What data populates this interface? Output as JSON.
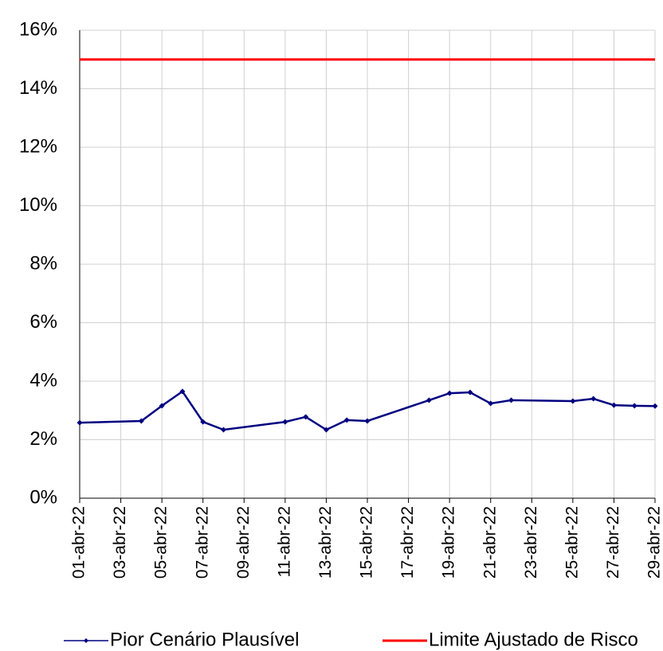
{
  "chart_data": {
    "type": "line",
    "x": [
      "2022-04-01",
      "2022-04-04",
      "2022-04-05",
      "2022-04-06",
      "2022-04-07",
      "2022-04-08",
      "2022-04-11",
      "2022-04-12",
      "2022-04-13",
      "2022-04-14",
      "2022-04-15",
      "2022-04-18",
      "2022-04-19",
      "2022-04-20",
      "2022-04-21",
      "2022-04-22",
      "2022-04-25",
      "2022-04-26",
      "2022-04-27",
      "2022-04-28",
      "2022-04-29"
    ],
    "series": [
      {
        "name": "Pior Cenário Plausível",
        "color": "#000080",
        "marker": true,
        "values": [
          2.58,
          2.64,
          3.16,
          3.65,
          2.61,
          2.34,
          2.61,
          2.78,
          2.34,
          2.67,
          2.64,
          3.35,
          3.59,
          3.62,
          3.24,
          3.35,
          3.32,
          3.4,
          3.18,
          3.16,
          3.15
        ]
      },
      {
        "name": "Limite Ajustado de Risco",
        "color": "#ff0000",
        "marker": false,
        "x": [
          "2022-04-01",
          "2022-04-29"
        ],
        "values": [
          15,
          15
        ]
      }
    ],
    "xlim": [
      "2022-04-01",
      "2022-04-29"
    ],
    "xticks": [
      {
        "value": "2022-04-01",
        "label": "01-abr-22"
      },
      {
        "value": "2022-04-03",
        "label": "03-abr-22"
      },
      {
        "value": "2022-04-05",
        "label": "05-abr-22"
      },
      {
        "value": "2022-04-07",
        "label": "07-abr-22"
      },
      {
        "value": "2022-04-09",
        "label": "09-abr-22"
      },
      {
        "value": "2022-04-11",
        "label": "11-abr-22"
      },
      {
        "value": "2022-04-13",
        "label": "13-abr-22"
      },
      {
        "value": "2022-04-15",
        "label": "15-abr-22"
      },
      {
        "value": "2022-04-17",
        "label": "17-abr-22"
      },
      {
        "value": "2022-04-19",
        "label": "19-abr-22"
      },
      {
        "value": "2022-04-21",
        "label": "21-abr-22"
      },
      {
        "value": "2022-04-23",
        "label": "23-abr-22"
      },
      {
        "value": "2022-04-25",
        "label": "25-abr-22"
      },
      {
        "value": "2022-04-27",
        "label": "27-abr-22"
      },
      {
        "value": "2022-04-29",
        "label": "29-abr-22"
      }
    ],
    "ylim": [
      0,
      16
    ],
    "yticks": [
      {
        "value": 0,
        "label": "0%"
      },
      {
        "value": 2,
        "label": "2%"
      },
      {
        "value": 4,
        "label": "4%"
      },
      {
        "value": 6,
        "label": "6%"
      },
      {
        "value": 8,
        "label": "8%"
      },
      {
        "value": 10,
        "label": "10%"
      },
      {
        "value": 12,
        "label": "12%"
      },
      {
        "value": 14,
        "label": "14%"
      },
      {
        "value": 16,
        "label": "16%"
      }
    ],
    "grid": true,
    "legend": "bottom"
  }
}
